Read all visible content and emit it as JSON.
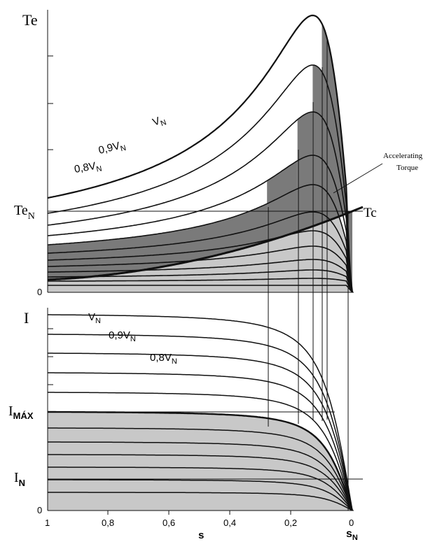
{
  "colors": {
    "line": "#111111",
    "light_fill": "#c8c8c8",
    "dark_fill": "#7a7a7a",
    "background": "#ffffff"
  },
  "torque_panel": {
    "y_label": "Te",
    "y_label_N_main": "Te",
    "y_label_N_sub": "N",
    "zero_label": "0",
    "curve_labels": [
      {
        "main": "V",
        "sub": "N"
      },
      {
        "main": "0,9V",
        "sub": "N"
      },
      {
        "main": "0,8V",
        "sub": "N"
      }
    ],
    "load_label": "Tc",
    "accelerating_label_line1": "Accelerating",
    "accelerating_label_line2": "Torque"
  },
  "current_panel": {
    "y_label": "I",
    "imax_main": "I",
    "imax_sub": "MÁX",
    "in_main": "I",
    "in_sub": "N",
    "zero_label": "0",
    "curve_labels": [
      {
        "main": "V",
        "sub": "N"
      },
      {
        "main": "0,9V",
        "sub": "N"
      },
      {
        "main": "0,8V",
        "sub": "N"
      }
    ]
  },
  "x_axis": {
    "ticks": [
      "1",
      "0,8",
      "0,6",
      "0,4",
      "0,2",
      "0"
    ],
    "label": "s",
    "sN_main": "s",
    "sN_sub": "N"
  }
}
